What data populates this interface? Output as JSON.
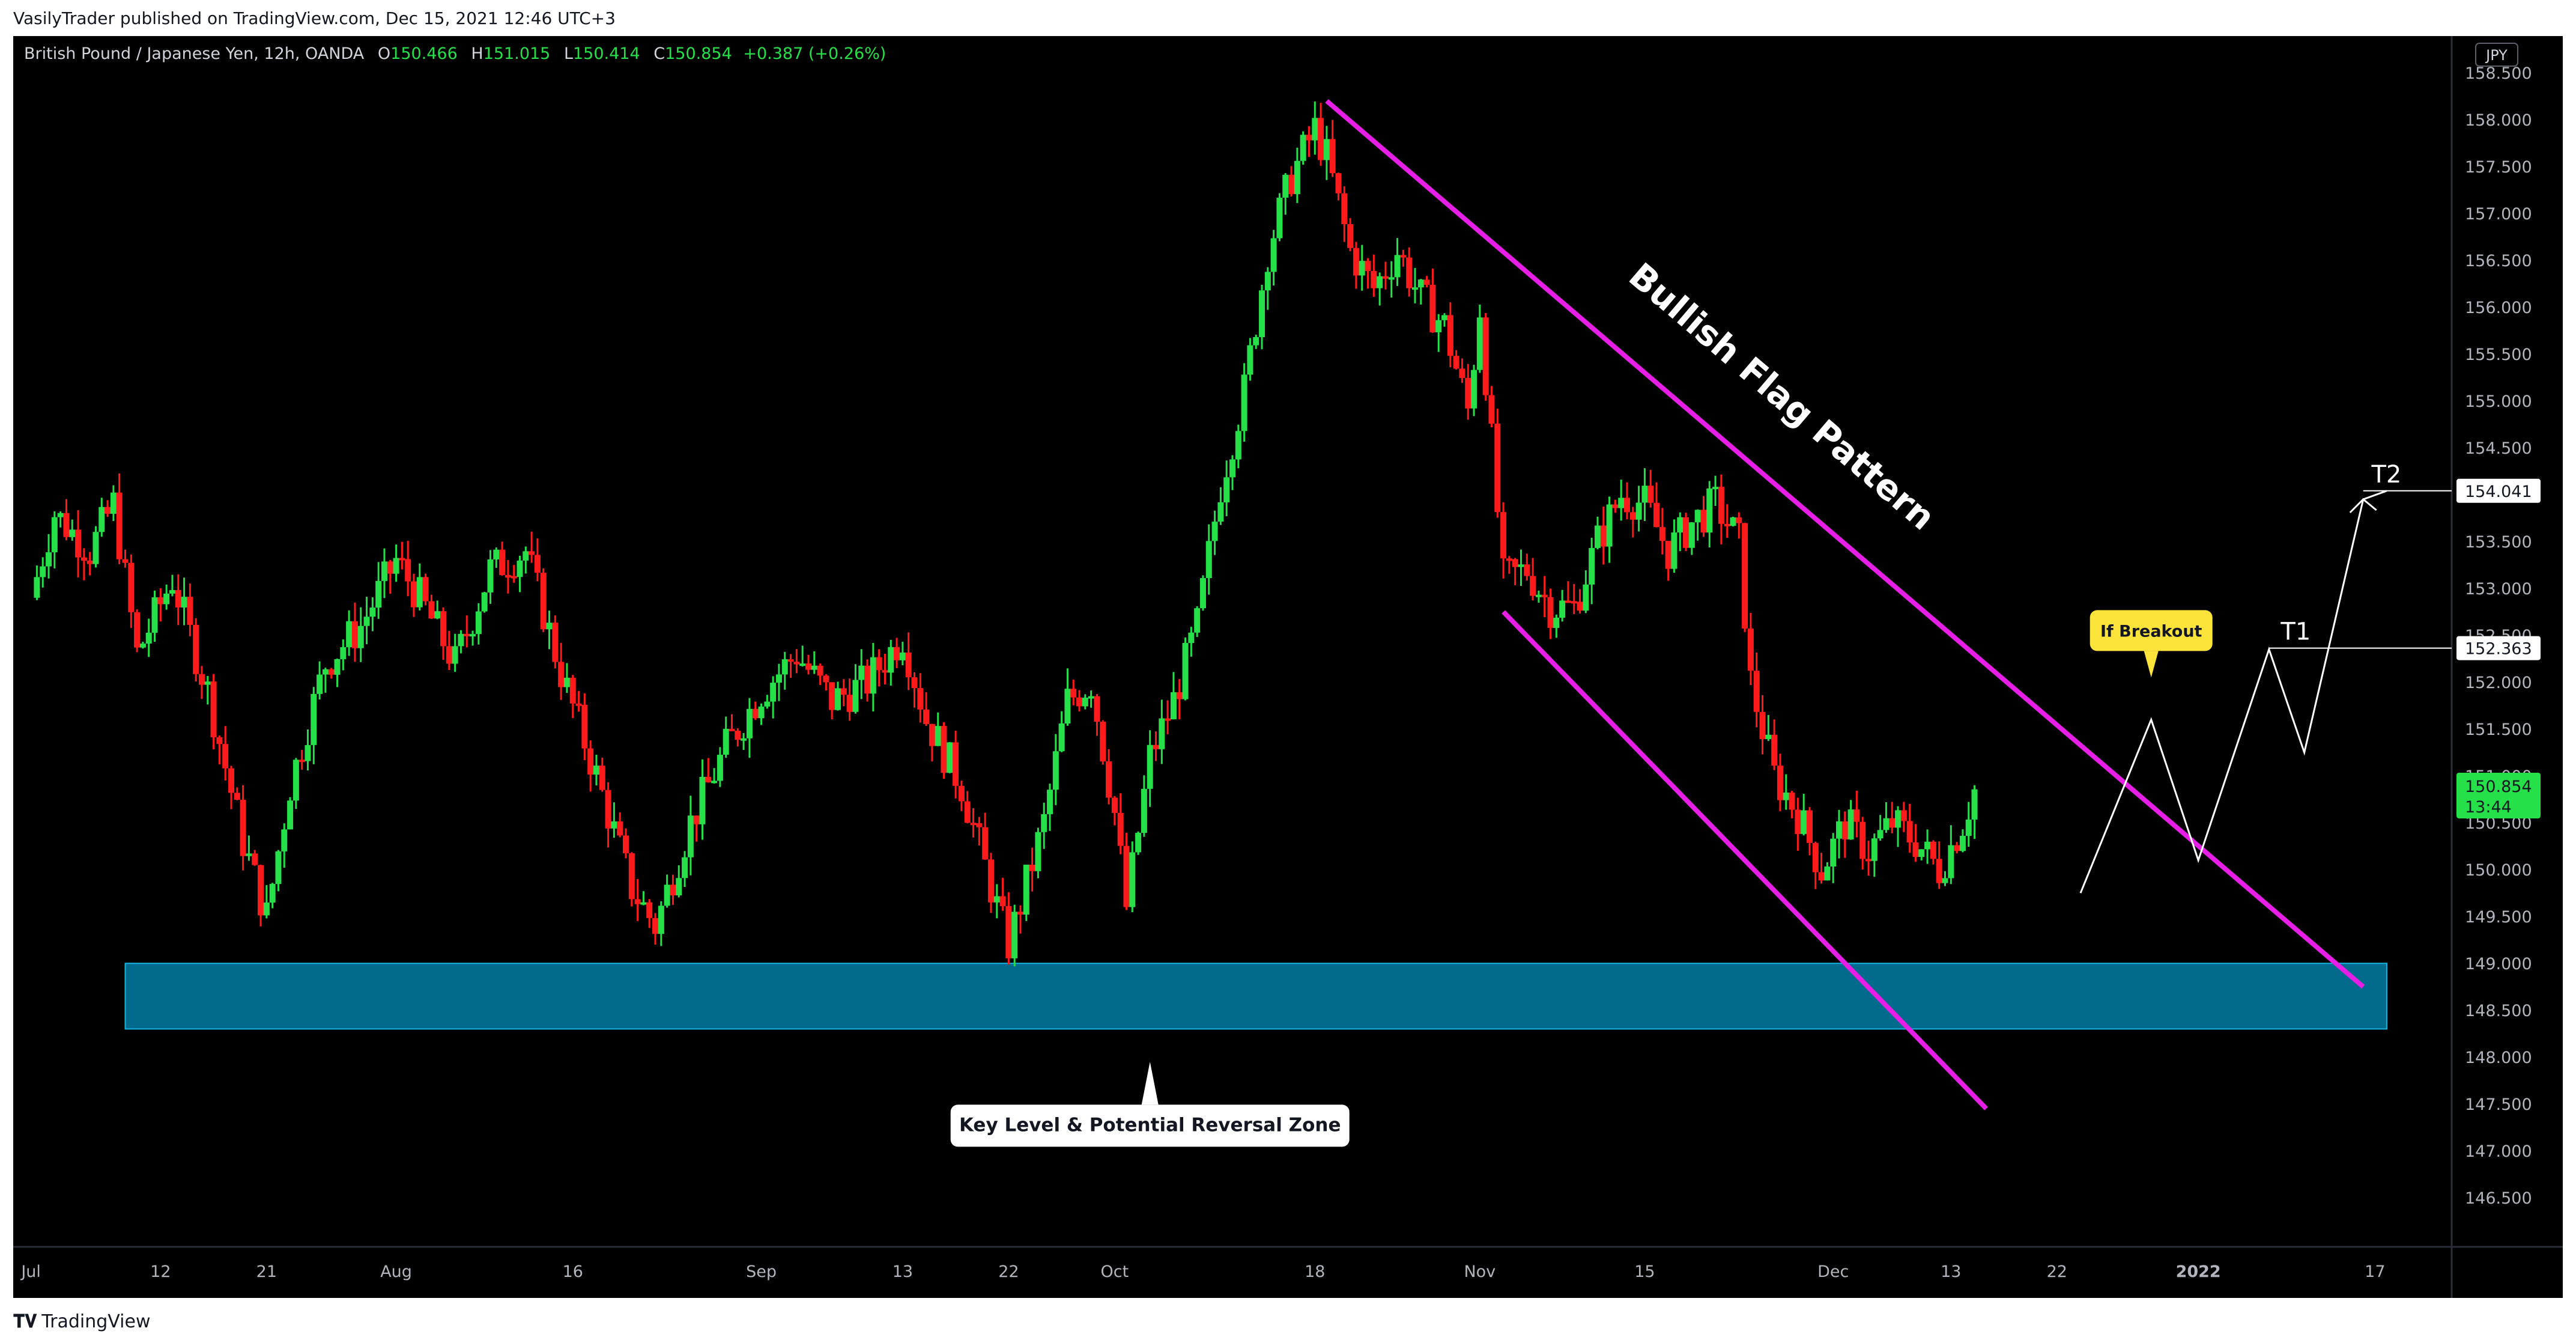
{
  "header": {
    "publisher": "VasilyTrader published on TradingView.com, Dec 15, 2021 12:46 UTC+3"
  },
  "symbol": {
    "name": "British Pound / Japanese Yen, 12h, OANDA",
    "o_label": "O",
    "o": "150.466",
    "h_label": "H",
    "h": "151.015",
    "l_label": "L",
    "l": "150.414",
    "c_label": "C",
    "c": "150.854",
    "change": "+0.387 (+0.26%)"
  },
  "footer": {
    "brand": "TradingView"
  },
  "colors": {
    "up": "#26e04a",
    "down": "#ff1b1b",
    "channel": "#e61ee6",
    "zone": "#026a8c",
    "badge": "#fde43a"
  },
  "chart_data": {
    "type": "candlestick",
    "currency_badge": "JPY",
    "y_ticks": [
      "158.500",
      "158.000",
      "157.500",
      "157.000",
      "156.500",
      "156.000",
      "155.500",
      "155.000",
      "154.500",
      "154.000",
      "153.500",
      "153.000",
      "152.500",
      "152.000",
      "151.500",
      "151.000",
      "150.500",
      "150.000",
      "149.500",
      "149.000",
      "148.500",
      "148.000",
      "147.500",
      "147.000",
      "146.500"
    ],
    "ylim": [
      146.2,
      158.7
    ],
    "x_ticks": [
      {
        "label": "Jul",
        "x": 0
      },
      {
        "label": "12",
        "x": 11
      },
      {
        "label": "21",
        "x": 20
      },
      {
        "label": "Aug",
        "x": 31
      },
      {
        "label": "16",
        "x": 46
      },
      {
        "label": "Sep",
        "x": 62
      },
      {
        "label": "13",
        "x": 74
      },
      {
        "label": "22",
        "x": 83
      },
      {
        "label": "Oct",
        "x": 92
      },
      {
        "label": "18",
        "x": 109
      },
      {
        "label": "Nov",
        "x": 123
      },
      {
        "label": "15",
        "x": 137
      },
      {
        "label": "Dec",
        "x": 153
      },
      {
        "label": "13",
        "x": 163
      },
      {
        "label": "22",
        "x": 172
      },
      {
        "label": "2022",
        "x": 184
      },
      {
        "label": "17",
        "x": 199
      }
    ],
    "xlim": [
      -1,
      205
    ],
    "price_tags": [
      {
        "value": "154.041",
        "y": 154.041
      },
      {
        "value": "152.363",
        "y": 152.363
      }
    ],
    "current_price": {
      "value": "150.854",
      "countdown": "13:44",
      "y": 150.854
    },
    "series_keypoints": [
      [
        0,
        152.9
      ],
      [
        2,
        153.8
      ],
      [
        5,
        153.4
      ],
      [
        7,
        153.9
      ],
      [
        9,
        152.3
      ],
      [
        12,
        153.1
      ],
      [
        15,
        151.9
      ],
      [
        18,
        150.3
      ],
      [
        20,
        149.5
      ],
      [
        22,
        150.9
      ],
      [
        25,
        152.2
      ],
      [
        28,
        152.6
      ],
      [
        31,
        153.3
      ],
      [
        33,
        152.9
      ],
      [
        36,
        152.2
      ],
      [
        39,
        153.2
      ],
      [
        42,
        153.4
      ],
      [
        45,
        152.1
      ],
      [
        48,
        151.0
      ],
      [
        51,
        149.8
      ],
      [
        53,
        149.4
      ],
      [
        56,
        150.5
      ],
      [
        59,
        151.3
      ],
      [
        62,
        151.9
      ],
      [
        65,
        152.3
      ],
      [
        68,
        151.8
      ],
      [
        71,
        152.0
      ],
      [
        74,
        152.5
      ],
      [
        76,
        151.6
      ],
      [
        79,
        150.9
      ],
      [
        82,
        149.6
      ],
      [
        83,
        149.2
      ],
      [
        86,
        150.5
      ],
      [
        88,
        151.8
      ],
      [
        90,
        152.0
      ],
      [
        92,
        150.6
      ],
      [
        93,
        149.6
      ],
      [
        95,
        151.2
      ],
      [
        97,
        151.8
      ],
      [
        99,
        152.6
      ],
      [
        101,
        154.1
      ],
      [
        103,
        155.1
      ],
      [
        105,
        156.6
      ],
      [
        107,
        157.4
      ],
      [
        109,
        157.9
      ],
      [
        110,
        157.6
      ],
      [
        112,
        156.6
      ],
      [
        114,
        156.2
      ],
      [
        116,
        156.6
      ],
      [
        118,
        156.1
      ],
      [
        120,
        155.8
      ],
      [
        122,
        154.9
      ],
      [
        123,
        156.0
      ],
      [
        125,
        153.1
      ],
      [
        127,
        153.2
      ],
      [
        129,
        152.8
      ],
      [
        131,
        152.8
      ],
      [
        133,
        153.5
      ],
      [
        135,
        154.0
      ],
      [
        137,
        153.9
      ],
      [
        139,
        153.4
      ],
      [
        141,
        153.7
      ],
      [
        143,
        153.9
      ],
      [
        145,
        153.5
      ],
      [
        146,
        152.0
      ],
      [
        148,
        151.0
      ],
      [
        150,
        150.6
      ],
      [
        152,
        150.0
      ],
      [
        154,
        150.5
      ],
      [
        156,
        150.2
      ],
      [
        158,
        150.5
      ],
      [
        160,
        150.3
      ],
      [
        162,
        150.0
      ],
      [
        164,
        150.5
      ],
      [
        165,
        150.85
      ]
    ],
    "annotations": {
      "channel_label": "Bullish Flag Pattern",
      "zone_label": "Key Level & Potential Reversal Zone",
      "breakout_label": "If Breakout",
      "t1_label": "T1",
      "t2_label": "T2"
    },
    "zone": {
      "x0": 8,
      "x1": 200,
      "y0": 148.3,
      "y1": 149.0
    },
    "upper_channel": [
      [
        110,
        158.2
      ],
      [
        198,
        148.75
      ]
    ],
    "lower_channel": [
      [
        125,
        152.75
      ],
      [
        166,
        147.45
      ]
    ],
    "projection": [
      [
        174,
        149.75
      ],
      [
        180,
        151.6
      ],
      [
        184,
        150.1
      ],
      [
        190,
        152.35
      ],
      [
        193,
        151.25
      ],
      [
        198,
        153.95
      ],
      [
        200,
        154.041
      ]
    ],
    "t1_line": {
      "x0": 190,
      "y": 152.363
    },
    "t2_line": {
      "x0": 198,
      "y": 154.041
    }
  }
}
